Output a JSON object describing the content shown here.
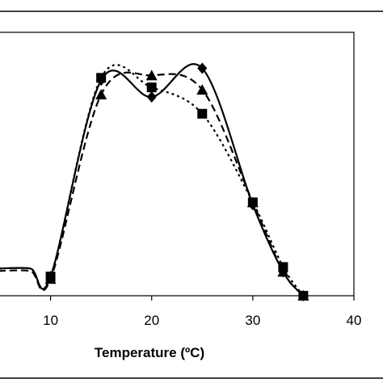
{
  "chart_data": {
    "type": "line",
    "title": "",
    "xlabel": "Temperature (ºC)",
    "ylabel": "",
    "xlim": [
      5,
      40
    ],
    "ylim": [
      0,
      1.1
    ],
    "xticks": [
      10,
      20,
      30,
      40
    ],
    "grid": false,
    "legend": "none",
    "series": [
      {
        "marker": "diamond",
        "line_style": "solid",
        "x": [
          10,
          15,
          20,
          25,
          30,
          33,
          35
        ],
        "y": [
          0.08,
          0.9,
          0.83,
          0.95,
          0.38,
          0.1,
          0.0
        ]
      },
      {
        "marker": "triangle",
        "line_style": "dash",
        "x": [
          10,
          15,
          20,
          25,
          30,
          33,
          35
        ],
        "y": [
          0.07,
          0.84,
          0.92,
          0.86,
          0.39,
          0.1,
          0.0
        ]
      },
      {
        "marker": "square",
        "line_style": "dot",
        "x": [
          10,
          15,
          20,
          25,
          30,
          33,
          35
        ],
        "y": [
          0.08,
          0.91,
          0.87,
          0.76,
          0.39,
          0.12,
          0.0
        ]
      }
    ],
    "colors": {
      "line": "#000000",
      "frame": "#000000",
      "background": "#ffffff"
    }
  }
}
